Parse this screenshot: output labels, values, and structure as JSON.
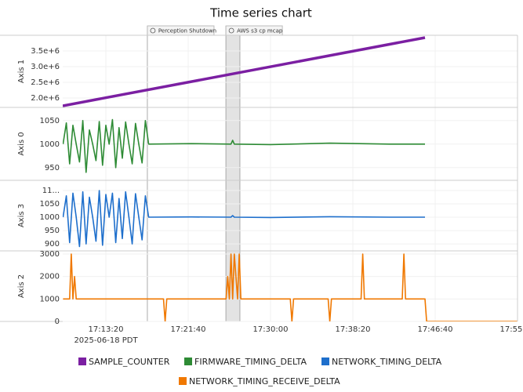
{
  "chart_data": {
    "type": "line",
    "title": "Time series chart",
    "xlim": [
      "17:08:58",
      "17:55:00"
    ],
    "xticks": [
      "17:13:20",
      "17:21:40",
      "17:30:00",
      "17:38:20",
      "17:46:40",
      "17:55:00"
    ],
    "x_sublabel": "2025-06-18 PDT",
    "grid": true,
    "annotations": [
      {
        "label": "Perception Shutdown",
        "x": [
          "17:17:32"
        ]
      },
      {
        "label": "AWS s3 cp mcap",
        "x": [
          "17:25:29",
          "17:26:54"
        ]
      }
    ],
    "panels": [
      {
        "axis_label": "Axis 1",
        "color": "#7b1fa2",
        "ylim": [
          1700000,
          4000000
        ],
        "yticks": [
          {
            "value": 2000000,
            "label": "2.0e+6"
          },
          {
            "value": 2500000,
            "label": "2.5e+6"
          },
          {
            "value": 3000000,
            "label": "3.0e+6"
          },
          {
            "value": 3500000,
            "label": "3.5e+6"
          }
        ],
        "series": [
          {
            "name": "SAMPLE_COUNTER",
            "color": "#7b1fa2",
            "x": [
              "17:08:58",
              "17:45:38"
            ],
            "values": [
              1750000,
              3925000
            ]
          }
        ]
      },
      {
        "axis_label": "Axis 0",
        "color": "#2e7d32",
        "ylim": [
          923,
          1078
        ],
        "yticks": [
          950,
          1000,
          1050
        ],
        "series": [
          {
            "name": "FIRMWARE_TIMING_DELTA",
            "color": "#2e8b35",
            "x": [
              "17:09:00",
              "17:09:20",
              "17:09:40",
              "17:10:00",
              "17:10:20",
              "17:10:40",
              "17:11:00",
              "17:11:20",
              "17:11:40",
              "17:12:00",
              "17:12:20",
              "17:12:40",
              "17:13:00",
              "17:13:20",
              "17:13:40",
              "17:14:00",
              "17:14:20",
              "17:14:40",
              "17:15:00",
              "17:15:20",
              "17:15:40",
              "17:16:00",
              "17:16:20",
              "17:16:40",
              "17:17:00",
              "17:17:20",
              "17:17:40",
              "17:22:00",
              "17:26:00",
              "17:26:10",
              "17:26:20",
              "17:30:00",
              "17:36:00",
              "17:42:00",
              "17:45:38"
            ],
            "values": [
              1000,
              1045,
              958,
              1040,
              1000,
              962,
              1050,
              940,
              1030,
              1000,
              965,
              1048,
              955,
              1040,
              1000,
              1052,
              950,
              1035,
              970,
              1047,
              1000,
              958,
              1044,
              1000,
              960,
              1050,
              1000,
              1001,
              1000,
              1008,
              1000,
              999,
              1002,
              1000,
              1000
            ]
          }
        ]
      },
      {
        "axis_label": "Axis 3",
        "color": "#1e6fcc",
        "ylim": [
          874,
          1138
        ],
        "yticks": [
          900,
          950,
          1000,
          1050,
          {
            "value": 1100,
            "label": "11..."
          }
        ],
        "series": [
          {
            "name": "NETWORK_TIMING_DELTA",
            "color": "#1e6fcc",
            "x": [
              "17:09:00",
              "17:09:20",
              "17:09:40",
              "17:10:00",
              "17:10:20",
              "17:10:40",
              "17:11:00",
              "17:11:20",
              "17:11:40",
              "17:12:00",
              "17:12:20",
              "17:12:40",
              "17:13:00",
              "17:13:20",
              "17:13:40",
              "17:14:00",
              "17:14:20",
              "17:14:40",
              "17:15:00",
              "17:15:20",
              "17:15:40",
              "17:16:00",
              "17:16:20",
              "17:16:40",
              "17:17:00",
              "17:17:20",
              "17:17:40",
              "17:22:00",
              "17:26:00",
              "17:26:10",
              "17:26:20",
              "17:30:00",
              "17:36:00",
              "17:42:00",
              "17:45:38"
            ],
            "values": [
              1000,
              1080,
              905,
              1090,
              1000,
              890,
              1095,
              900,
              1075,
              1000,
              910,
              1100,
              895,
              1085,
              1000,
              1090,
              905,
              1070,
              920,
              1095,
              1000,
              900,
              1088,
              1000,
              915,
              1080,
              1000,
              1001,
              1000,
              1006,
              1000,
              999,
              1002,
              1000,
              1000
            ]
          }
        ]
      },
      {
        "axis_label": "Axis 2",
        "color": "#ef6c00",
        "ylim": [
          0,
          3140
        ],
        "yticks": [
          0,
          1000,
          2000,
          3000
        ],
        "series": [
          {
            "name": "NETWORK_TIMING_RECEIVE_DELTA",
            "color": "#f07800",
            "x": [
              "17:09:00",
              "17:09:40",
              "17:09:50",
              "17:10:00",
              "17:10:10",
              "17:10:20",
              "17:17:40",
              "17:19:10",
              "17:19:20",
              "17:19:30",
              "17:25:30",
              "17:25:40",
              "17:25:50",
              "17:26:00",
              "17:26:10",
              "17:26:20",
              "17:26:30",
              "17:26:40",
              "17:26:50",
              "17:27:00",
              "17:32:00",
              "17:32:10",
              "17:32:20",
              "17:35:50",
              "17:36:00",
              "17:36:10",
              "17:39:10",
              "17:39:20",
              "17:39:30",
              "17:43:20",
              "17:43:30",
              "17:43:40",
              "17:45:38",
              "17:45:48",
              "17:55:00"
            ],
            "values": [
              1000,
              1000,
              3000,
              1000,
              2000,
              1000,
              1000,
              1000,
              0,
              1000,
              1000,
              2000,
              1000,
              3000,
              1000,
              3000,
              2000,
              1000,
              3000,
              1000,
              1000,
              0,
              1000,
              1000,
              0,
              1000,
              1000,
              3000,
              1000,
              1000,
              3000,
              1000,
              1000,
              0,
              0
            ]
          }
        ]
      }
    ]
  }
}
